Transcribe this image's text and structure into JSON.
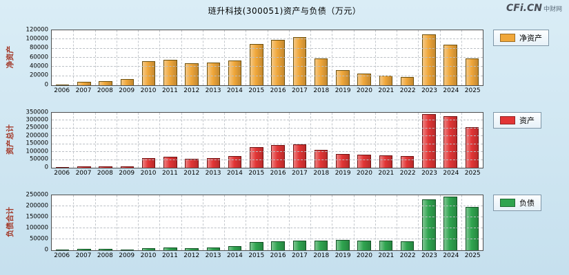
{
  "page": {
    "title": "琏升科技(300051)资产与负债（万元）",
    "logo": "CFi.CN",
    "logo_sub": "中财网"
  },
  "chart_data": [
    {
      "type": "bar",
      "title": "净资产",
      "ylabel": "净资产",
      "legend": "净资产",
      "color": "#F0A73A",
      "border_color": "#6b4e0a",
      "categories": [
        "2006",
        "2007",
        "2008",
        "2009",
        "2010",
        "2011",
        "2012",
        "2013",
        "2014",
        "2015",
        "2016",
        "2017",
        "2018",
        "2019",
        "2020",
        "2021",
        "2022",
        "2023",
        "2024",
        "2025"
      ],
      "values": [
        1500,
        7500,
        9000,
        13000,
        52000,
        56000,
        48000,
        50000,
        54000,
        90000,
        99000,
        105000,
        58000,
        33000,
        26000,
        21000,
        18000,
        111000,
        88000,
        58000
      ],
      "ylim": [
        0,
        120000
      ],
      "yticks": [
        0,
        20000,
        40000,
        60000,
        80000,
        100000,
        120000
      ],
      "grid": true,
      "legend_position": "right"
    },
    {
      "type": "bar",
      "title": "资产总计",
      "ylabel": "资产总计",
      "legend": "资产",
      "color": "#E23535",
      "border_color": "#6e0f0f",
      "categories": [
        "2006",
        "2007",
        "2008",
        "2009",
        "2010",
        "2011",
        "2012",
        "2013",
        "2014",
        "2015",
        "2016",
        "2017",
        "2018",
        "2019",
        "2020",
        "2021",
        "2022",
        "2023",
        "2024",
        "2025"
      ],
      "values": [
        6000,
        9000,
        9500,
        11000,
        60000,
        70000,
        57000,
        61000,
        75000,
        130000,
        145000,
        150000,
        115000,
        88000,
        83000,
        79000,
        74000,
        341000,
        327000,
        260000
      ],
      "ylim": [
        0,
        350000
      ],
      "yticks": [
        0,
        50000,
        100000,
        150000,
        200000,
        250000,
        300000,
        350000
      ],
      "grid": true,
      "legend_position": "right"
    },
    {
      "type": "bar",
      "title": "负债合计",
      "ylabel": "负债合计",
      "legend": "负债",
      "color": "#2FA44F",
      "border_color": "#0f4f22",
      "categories": [
        "2006",
        "2007",
        "2008",
        "2009",
        "2010",
        "2011",
        "2012",
        "2013",
        "2014",
        "2015",
        "2016",
        "2017",
        "2018",
        "2019",
        "2020",
        "2021",
        "2022",
        "2023",
        "2024",
        "2025"
      ],
      "values": [
        3000,
        5000,
        5000,
        3500,
        10000,
        14000,
        10000,
        11500,
        20000,
        38000,
        41000,
        45000,
        45000,
        48000,
        45000,
        44000,
        42000,
        230000,
        244000,
        198000
      ],
      "ylim": [
        0,
        250000
      ],
      "yticks": [
        0,
        50000,
        100000,
        150000,
        200000,
        250000
      ],
      "grid": true,
      "legend_position": "right"
    }
  ]
}
